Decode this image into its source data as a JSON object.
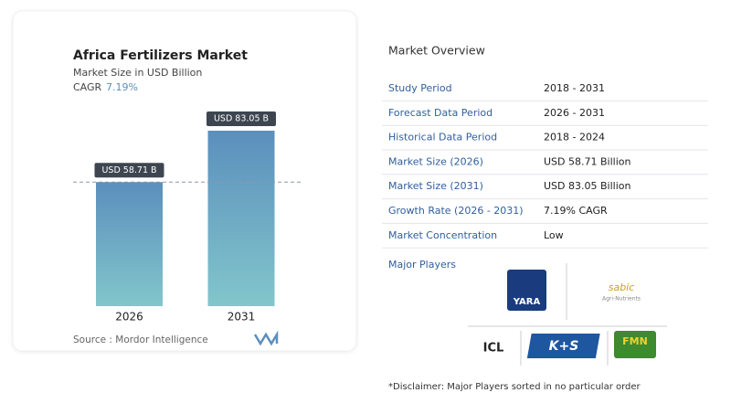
{
  "chart_data": {
    "type": "bar",
    "title": "Africa Fertilizers Market",
    "subtitle": "Market Size in USD Billion",
    "cagr_label": "CAGR",
    "cagr_value": "7.19%",
    "categories": [
      "2026",
      "2031"
    ],
    "values": [
      58.71,
      83.05
    ],
    "value_labels": [
      "USD 58.71 B",
      "USD 83.05 B"
    ],
    "source": "Source :  Mordor Intelligence"
  },
  "overview": {
    "title": "Market Overview",
    "rows": [
      [
        "Study Period",
        "2018 - 2031"
      ],
      [
        "Forecast Data Period",
        "2026 - 2031"
      ],
      [
        "Historical Data Period",
        "2018 - 2024"
      ],
      [
        "Market Size (2026)",
        "USD 58.71 Billion"
      ],
      [
        "Market Size (2031)",
        "USD 83.05 Billion"
      ],
      [
        "Growth Rate (2026 - 2031)",
        "7.19% CAGR"
      ],
      [
        "Market Concentration",
        "Low"
      ]
    ],
    "players_title": "Major Players",
    "players": [
      "YARA",
      "sabic",
      "ICL",
      "K+S",
      "FMN"
    ],
    "sabic_sub": "Agri-Nutrients",
    "disclaimer": "*Disclaimer: Major Players sorted in no particular order"
  }
}
